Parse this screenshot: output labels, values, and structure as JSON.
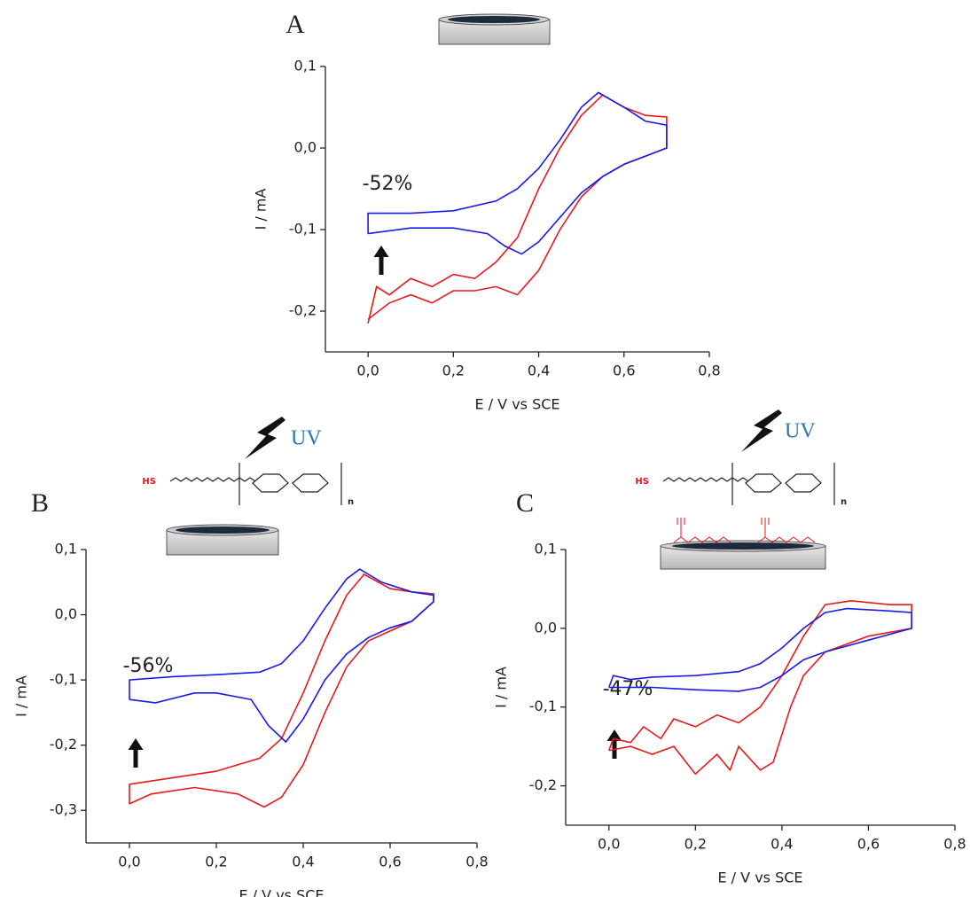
{
  "chart_data": [
    {
      "type": "line",
      "panel_label": "A",
      "annotation": "-52%",
      "xlabel": "E / V vs SCE",
      "ylabel": "I / mA",
      "xlim": [
        -0.1,
        0.8
      ],
      "ylim": [
        -0.25,
        0.1
      ],
      "xticks": [
        {
          "value": 0,
          "label": "0,0"
        },
        {
          "value": 0.2,
          "label": "0,2"
        },
        {
          "value": 0.4,
          "label": "0,4"
        },
        {
          "value": 0.6,
          "label": "0,6"
        },
        {
          "value": 0.8,
          "label": "0,8"
        }
      ],
      "yticks": [
        {
          "value": -0.2,
          "label": "-0,2"
        },
        {
          "value": -0.1,
          "label": "-0,1"
        },
        {
          "value": 0,
          "label": "0,0"
        },
        {
          "value": 0.1,
          "label": "0,1"
        }
      ],
      "series": [
        {
          "color": "#e8191c",
          "x": [
            0,
            0.02,
            0.05,
            0.1,
            0.15,
            0.2,
            0.25,
            0.3,
            0.35,
            0.4,
            0.45,
            0.5,
            0.55,
            0.6,
            0.65,
            0.7,
            0.7,
            0.65,
            0.6,
            0.55,
            0.5,
            0.45,
            0.4,
            0.35,
            0.3,
            0.25,
            0.2,
            0.15,
            0.1,
            0.05,
            0
          ],
          "values": [
            -0.215,
            -0.17,
            -0.18,
            -0.16,
            -0.17,
            -0.155,
            -0.16,
            -0.14,
            -0.11,
            -0.05,
            0.0,
            0.04,
            0.065,
            0.05,
            0.04,
            0.038,
            0.0,
            -0.01,
            -0.02,
            -0.035,
            -0.06,
            -0.1,
            -0.15,
            -0.18,
            -0.17,
            -0.175,
            -0.175,
            -0.19,
            -0.18,
            -0.19,
            -0.21
          ]
        },
        {
          "color": "#1a1aeb",
          "x": [
            0,
            0,
            0.1,
            0.2,
            0.3,
            0.35,
            0.4,
            0.45,
            0.5,
            0.54,
            0.6,
            0.65,
            0.7,
            0.7,
            0.65,
            0.6,
            0.55,
            0.5,
            0.45,
            0.4,
            0.36,
            0.32,
            0.28,
            0.2,
            0.1,
            0
          ],
          "values": [
            -0.105,
            -0.08,
            -0.08,
            -0.077,
            -0.065,
            -0.05,
            -0.025,
            0.01,
            0.05,
            0.068,
            0.05,
            0.033,
            0.028,
            0.0,
            -0.01,
            -0.02,
            -0.035,
            -0.055,
            -0.085,
            -0.115,
            -0.13,
            -0.12,
            -0.105,
            -0.098,
            -0.098,
            -0.105
          ]
        }
      ]
    },
    {
      "type": "line",
      "panel_label": "B",
      "annotation": "-56%",
      "xlabel": "E / V vs SCE",
      "ylabel": "I / mA",
      "uv_label": "UV",
      "structure_texts": [
        "HS",
        "n"
      ],
      "xlim": [
        -0.1,
        0.8
      ],
      "ylim": [
        -0.35,
        0.1
      ],
      "xticks": [
        {
          "value": 0,
          "label": "0,0"
        },
        {
          "value": 0.2,
          "label": "0,2"
        },
        {
          "value": 0.4,
          "label": "0,4"
        },
        {
          "value": 0.6,
          "label": "0,6"
        },
        {
          "value": 0.8,
          "label": "0,8"
        }
      ],
      "yticks": [
        {
          "value": -0.3,
          "label": "-0,3"
        },
        {
          "value": -0.2,
          "label": "-0,2"
        },
        {
          "value": -0.1,
          "label": "-0,1"
        },
        {
          "value": 0,
          "label": "0,0"
        },
        {
          "value": 0.1,
          "label": "0,1"
        }
      ],
      "series": [
        {
          "color": "#e8191c",
          "x": [
            0,
            0,
            0.1,
            0.2,
            0.3,
            0.35,
            0.4,
            0.45,
            0.5,
            0.54,
            0.6,
            0.65,
            0.7,
            0.7,
            0.65,
            0.6,
            0.55,
            0.5,
            0.45,
            0.4,
            0.35,
            0.31,
            0.25,
            0.15,
            0.05,
            0
          ],
          "values": [
            -0.29,
            -0.26,
            -0.25,
            -0.24,
            -0.22,
            -0.19,
            -0.12,
            -0.04,
            0.03,
            0.062,
            0.04,
            0.035,
            0.032,
            0.02,
            -0.01,
            -0.025,
            -0.04,
            -0.08,
            -0.15,
            -0.23,
            -0.28,
            -0.295,
            -0.275,
            -0.265,
            -0.275,
            -0.29
          ]
        },
        {
          "color": "#1a1aeb",
          "x": [
            0,
            0,
            0.1,
            0.2,
            0.3,
            0.35,
            0.4,
            0.45,
            0.5,
            0.53,
            0.58,
            0.65,
            0.7,
            0.7,
            0.65,
            0.6,
            0.55,
            0.5,
            0.45,
            0.4,
            0.36,
            0.32,
            0.28,
            0.2,
            0.15,
            0.06,
            0
          ],
          "values": [
            -0.13,
            -0.1,
            -0.095,
            -0.092,
            -0.088,
            -0.075,
            -0.04,
            0.01,
            0.055,
            0.07,
            0.05,
            0.035,
            0.03,
            0.02,
            -0.01,
            -0.02,
            -0.035,
            -0.06,
            -0.1,
            -0.16,
            -0.195,
            -0.17,
            -0.13,
            -0.12,
            -0.12,
            -0.135,
            -0.13
          ]
        }
      ]
    },
    {
      "type": "line",
      "panel_label": "C",
      "annotation": "-47%",
      "xlabel": "E / V vs SCE",
      "ylabel": "I / mA",
      "uv_label": "UV",
      "structure_texts": [
        "HS",
        "n"
      ],
      "xlim": [
        -0.1,
        0.8
      ],
      "ylim": [
        -0.25,
        0.1
      ],
      "xticks": [
        {
          "value": 0,
          "label": "0,0"
        },
        {
          "value": 0.2,
          "label": "0,2"
        },
        {
          "value": 0.4,
          "label": "0,4"
        },
        {
          "value": 0.6,
          "label": "0,6"
        },
        {
          "value": 0.8,
          "label": "0,8"
        }
      ],
      "yticks": [
        {
          "value": -0.2,
          "label": "-0,2"
        },
        {
          "value": -0.1,
          "label": "-0,1"
        },
        {
          "value": 0,
          "label": "0,0"
        },
        {
          "value": 0.1,
          "label": "0,1"
        }
      ],
      "series": [
        {
          "color": "#e8191c",
          "x": [
            0,
            0.01,
            0.05,
            0.08,
            0.12,
            0.15,
            0.2,
            0.25,
            0.3,
            0.35,
            0.4,
            0.45,
            0.5,
            0.56,
            0.65,
            0.7,
            0.7,
            0.6,
            0.5,
            0.45,
            0.42,
            0.38,
            0.35,
            0.3,
            0.28,
            0.25,
            0.2,
            0.15,
            0.1,
            0.05,
            0
          ],
          "values": [
            -0.155,
            -0.14,
            -0.145,
            -0.125,
            -0.14,
            -0.115,
            -0.125,
            -0.11,
            -0.12,
            -0.1,
            -0.06,
            -0.01,
            0.03,
            0.035,
            0.03,
            0.03,
            0.0,
            -0.01,
            -0.03,
            -0.06,
            -0.1,
            -0.17,
            -0.18,
            -0.15,
            -0.18,
            -0.16,
            -0.185,
            -0.15,
            -0.16,
            -0.15,
            -0.155
          ]
        },
        {
          "color": "#1a1aeb",
          "x": [
            0,
            0.01,
            0.05,
            0.1,
            0.2,
            0.3,
            0.35,
            0.4,
            0.45,
            0.5,
            0.55,
            0.65,
            0.7,
            0.7,
            0.6,
            0.5,
            0.45,
            0.4,
            0.35,
            0.3,
            0.2,
            0.1,
            0.05,
            0
          ],
          "values": [
            -0.075,
            -0.06,
            -0.065,
            -0.062,
            -0.06,
            -0.055,
            -0.045,
            -0.025,
            0.0,
            0.02,
            0.025,
            0.022,
            0.02,
            0.0,
            -0.015,
            -0.03,
            -0.04,
            -0.06,
            -0.075,
            -0.08,
            -0.078,
            -0.075,
            -0.075,
            -0.075
          ]
        }
      ]
    }
  ]
}
